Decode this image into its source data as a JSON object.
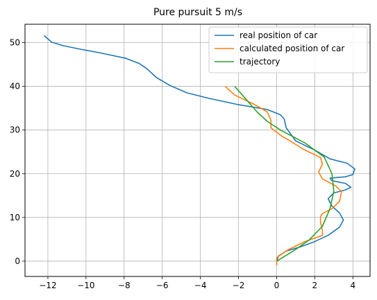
{
  "chart_data": {
    "type": "line",
    "title": "Pure pursuit 5 m/s",
    "xlabel": "",
    "ylabel": "",
    "xlim": [
      -13.2,
      4.9
    ],
    "ylim": [
      -3.5,
      54.2
    ],
    "xticks": [
      -12,
      -10,
      -8,
      -6,
      -4,
      -2,
      0,
      2,
      4
    ],
    "xtick_labels": [
      "−12",
      "−10",
      "−8",
      "−6",
      "−4",
      "−2",
      "0",
      "2",
      "4"
    ],
    "yticks": [
      0,
      10,
      20,
      30,
      40,
      50
    ],
    "ytick_labels": [
      "0",
      "10",
      "20",
      "30",
      "40",
      "50"
    ],
    "grid": true,
    "legend_position": "top-right",
    "series": [
      {
        "name": "real position of car",
        "color": "#1f77b4",
        "points": [
          [
            0,
            0
          ],
          [
            0.1,
            1.2
          ],
          [
            0.5,
            2.3
          ],
          [
            1.2,
            3.2
          ],
          [
            1.9,
            4.3
          ],
          [
            2.7,
            5.9
          ],
          [
            3.3,
            7.8
          ],
          [
            3.5,
            9.4
          ],
          [
            3.3,
            11.0
          ],
          [
            2.9,
            12.6
          ],
          [
            2.7,
            14.3
          ],
          [
            3.0,
            15.6
          ],
          [
            3.6,
            16.3
          ],
          [
            3.9,
            16.9
          ],
          [
            3.6,
            17.8
          ],
          [
            2.9,
            18.4
          ],
          [
            2.8,
            19.0
          ],
          [
            3.6,
            19.3
          ],
          [
            4.0,
            19.8
          ],
          [
            4.1,
            21.1
          ],
          [
            3.7,
            22.4
          ],
          [
            2.8,
            23.4
          ],
          [
            2.0,
            25.4
          ],
          [
            1.0,
            27.5
          ],
          [
            0.5,
            30.5
          ],
          [
            0.4,
            32.5
          ],
          [
            0.2,
            33.5
          ],
          [
            -0.5,
            34.7
          ],
          [
            -2,
            35.8
          ],
          [
            -3.6,
            37.3
          ],
          [
            -4.7,
            38.5
          ],
          [
            -5.6,
            40.2
          ],
          [
            -6.3,
            42.0
          ],
          [
            -6.8,
            44.0
          ],
          [
            -7.2,
            45.2
          ],
          [
            -7.9,
            46.4
          ],
          [
            -9.2,
            47.6
          ],
          [
            -10.3,
            48.5
          ],
          [
            -11.2,
            49.3
          ],
          [
            -11.8,
            50.1
          ],
          [
            -12.2,
            51.6
          ]
        ]
      },
      {
        "name": "calculated position of car",
        "color": "#ff7f0e",
        "points": [
          [
            0,
            -1
          ],
          [
            0,
            0.8
          ],
          [
            0.6,
            2.6
          ],
          [
            1.5,
            4.5
          ],
          [
            2.4,
            5.9
          ],
          [
            2.4,
            7.0
          ],
          [
            2.3,
            9.0
          ],
          [
            2.3,
            10.2
          ],
          [
            2.4,
            10.9
          ],
          [
            2.9,
            12.0
          ],
          [
            3.3,
            13.7
          ],
          [
            3.4,
            15.9
          ],
          [
            3.1,
            17.2
          ],
          [
            2.4,
            18.8
          ],
          [
            2.2,
            20.4
          ],
          [
            2.4,
            22.2
          ],
          [
            2.3,
            23.7
          ],
          [
            1.4,
            25.6
          ],
          [
            0.6,
            27.8
          ],
          [
            0.3,
            28.5
          ],
          [
            -0.3,
            30.5
          ],
          [
            -0.3,
            32.3
          ],
          [
            -0.5,
            34.2
          ],
          [
            -1.2,
            35.9
          ],
          [
            -2.2,
            38.0
          ],
          [
            -2.7,
            40.0
          ]
        ]
      },
      {
        "name": "trajectory",
        "color": "#2ca02c",
        "points": [
          [
            0,
            0
          ],
          [
            0.9,
            2.4
          ],
          [
            1.7,
            4.8
          ],
          [
            2.4,
            8.0
          ],
          [
            2.8,
            12.0
          ],
          [
            3.0,
            16.0
          ],
          [
            2.9,
            20.0
          ],
          [
            2.5,
            23.8
          ],
          [
            1.5,
            27.0
          ],
          [
            0.2,
            30.0
          ],
          [
            -0.5,
            32.0
          ],
          [
            -1.0,
            34.0
          ],
          [
            -1.4,
            36.0
          ],
          [
            -1.8,
            38.0
          ],
          [
            -2.2,
            40.0
          ]
        ]
      }
    ]
  }
}
